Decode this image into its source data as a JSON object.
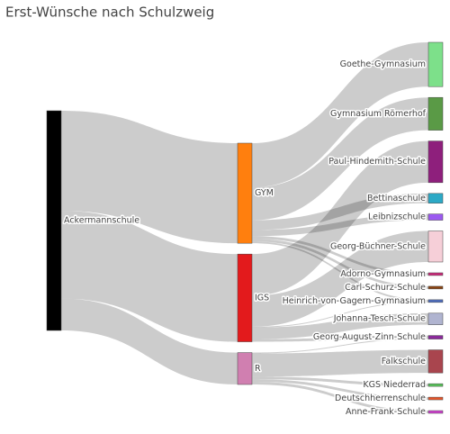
{
  "chart_data": {
    "type": "sankey",
    "title": "Erst-Wünsche nach Schulzweig",
    "nodes": [
      {
        "label": "Ackermannschule",
        "color": "#000000"
      },
      {
        "label": "GYM",
        "color": "#ff7f0e"
      },
      {
        "label": "IGS",
        "color": "#e31a1c"
      },
      {
        "label": "R",
        "color": "#d07fb0"
      },
      {
        "label": "Goethe-Gymnasium",
        "color": "#7de08a"
      },
      {
        "label": "Gymnasium Römerhof",
        "color": "#5a9a46"
      },
      {
        "label": "Paul-Hindemith-Schule",
        "color": "#8e1f7c"
      },
      {
        "label": "Bettinaschule",
        "color": "#2ca9c6"
      },
      {
        "label": "Leibnizschule",
        "color": "#9b59f0"
      },
      {
        "label": "Georg-Büchner-Schule",
        "color": "#f6cfd8"
      },
      {
        "label": "Adorno-Gymnasium",
        "color": "#cc2a7a"
      },
      {
        "label": "Carl-Schurz-Schule",
        "color": "#8b4513"
      },
      {
        "label": "Heinrich-von-Gagern-Gymnasium",
        "color": "#4f6fc0"
      },
      {
        "label": "Johanna-Tesch-Schule",
        "color": "#b0b4d0"
      },
      {
        "label": "Georg-August-Zinn-Schule",
        "color": "#8a2a9a"
      },
      {
        "label": "Falkschule",
        "color": "#a9454e"
      },
      {
        "label": "KGS Niederrad",
        "color": "#58c45a"
      },
      {
        "label": "Deutschherrenschule",
        "color": "#e8562a"
      },
      {
        "label": "Anne-Frank-Schule",
        "color": "#d040d0"
      }
    ],
    "link_color": "rgba(0,0,0,0.2)",
    "links": [
      {
        "source": 0,
        "target": 1,
        "value": 113
      },
      {
        "source": 0,
        "target": 2,
        "value": 99
      },
      {
        "source": 0,
        "target": 3,
        "value": 36
      },
      {
        "source": 1,
        "target": 4,
        "value": 50
      },
      {
        "source": 1,
        "target": 5,
        "value": 37
      },
      {
        "source": 1,
        "target": 7,
        "value": 11
      },
      {
        "source": 1,
        "target": 8,
        "value": 7
      },
      {
        "source": 1,
        "target": 10,
        "value": 3
      },
      {
        "source": 1,
        "target": 11,
        "value": 3
      },
      {
        "source": 1,
        "target": 12,
        "value": 2
      },
      {
        "source": 2,
        "target": 6,
        "value": 47
      },
      {
        "source": 2,
        "target": 9,
        "value": 35
      },
      {
        "source": 2,
        "target": 12,
        "value": 1
      },
      {
        "source": 2,
        "target": 13,
        "value": 13
      },
      {
        "source": 2,
        "target": 14,
        "value": 3
      },
      {
        "source": 3,
        "target": 14,
        "value": 1
      },
      {
        "source": 3,
        "target": 15,
        "value": 26
      },
      {
        "source": 3,
        "target": 16,
        "value": 3
      },
      {
        "source": 3,
        "target": 17,
        "value": 3
      },
      {
        "source": 3,
        "target": 18,
        "value": 3
      }
    ]
  }
}
